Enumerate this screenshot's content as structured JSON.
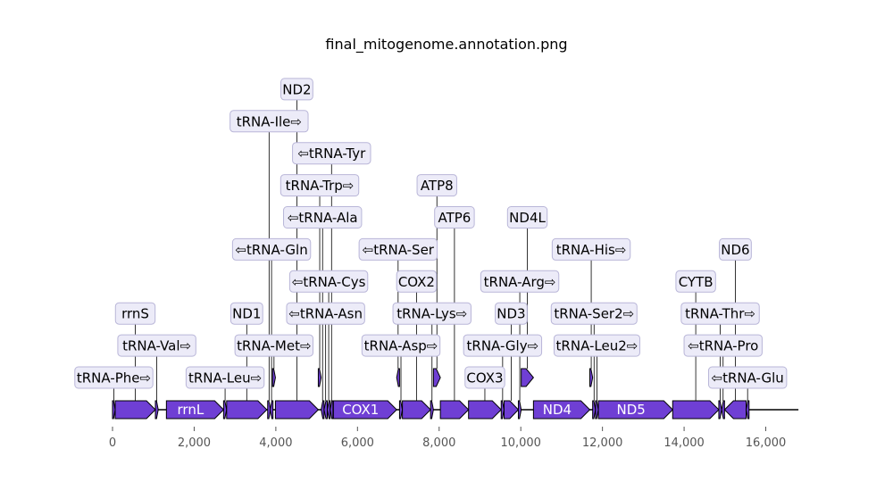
{
  "title": "final_mitogenome.annotation.png",
  "colors": {
    "feature_fill": "#6f3fd4",
    "feature_stroke": "#000000",
    "label_box_fill": "#ecebf8",
    "label_box_stroke": "#b9b6d8",
    "feature_text": "#ffffff",
    "backbone": "#000000",
    "axis_text": "#555555"
  },
  "axis": {
    "min": 0,
    "max": 16800,
    "ticks": [
      {
        "value": 0,
        "label": "0"
      },
      {
        "value": 2000,
        "label": "2,000"
      },
      {
        "value": 4000,
        "label": "4,000"
      },
      {
        "value": 6000,
        "label": "6,000"
      },
      {
        "value": 8000,
        "label": "8,000"
      },
      {
        "value": 10000,
        "label": "10,000"
      },
      {
        "value": 12000,
        "label": "12,000"
      },
      {
        "value": 14000,
        "label": "14,000"
      },
      {
        "value": 16000,
        "label": "16,000"
      }
    ]
  },
  "features": [
    {
      "name": "tRNA-Phe",
      "start": 0,
      "end": 65,
      "strand": 1,
      "row": 0
    },
    {
      "name": "rrnS",
      "start": 65,
      "end": 1050,
      "strand": 1,
      "row": 0
    },
    {
      "name": "tRNA-Val",
      "start": 1050,
      "end": 1120,
      "strand": 1,
      "row": 0
    },
    {
      "name": "rrnL",
      "start": 1320,
      "end": 2720,
      "strand": 1,
      "row": 0,
      "inside": true
    },
    {
      "name": "tRNA-Leu",
      "start": 2720,
      "end": 2795,
      "strand": 1,
      "row": 0
    },
    {
      "name": "ND1",
      "start": 2795,
      "end": 3780,
      "strand": 1,
      "row": 0
    },
    {
      "name": "tRNA-Ile",
      "start": 3800,
      "end": 3870,
      "strand": 1,
      "row": 0
    },
    {
      "name": "tRNA-Gln",
      "start": 3860,
      "end": 3930,
      "strand": -1,
      "row": 0
    },
    {
      "name": "tRNA-Met",
      "start": 3920,
      "end": 3990,
      "strand": 1,
      "row": 1
    },
    {
      "name": "ND2",
      "start": 3990,
      "end": 5040,
      "strand": 1,
      "row": 0
    },
    {
      "name": "tRNA-Trp",
      "start": 5040,
      "end": 5110,
      "strand": 1,
      "row": 1
    },
    {
      "name": "tRNA-Ala",
      "start": 5110,
      "end": 5180,
      "strand": -1,
      "row": 0
    },
    {
      "name": "tRNA-Asn",
      "start": 5180,
      "end": 5260,
      "strand": -1,
      "row": 0
    },
    {
      "name": "tRNA-Cys",
      "start": 5260,
      "end": 5330,
      "strand": -1,
      "row": 0
    },
    {
      "name": "tRNA-Tyr",
      "start": 5330,
      "end": 5400,
      "strand": -1,
      "row": 0
    },
    {
      "name": "COX1",
      "start": 5410,
      "end": 6960,
      "strand": 1,
      "row": 0,
      "inside": true
    },
    {
      "name": "tRNA-Ser",
      "start": 6960,
      "end": 7030,
      "strand": -1,
      "row": 1
    },
    {
      "name": "tRNA-Asp",
      "start": 7030,
      "end": 7100,
      "strand": 1,
      "row": 0
    },
    {
      "name": "COX2",
      "start": 7100,
      "end": 7790,
      "strand": 1,
      "row": 0
    },
    {
      "name": "tRNA-Lys",
      "start": 7790,
      "end": 7860,
      "strand": 1,
      "row": 0
    },
    {
      "name": "ATP8",
      "start": 7860,
      "end": 8030,
      "strand": 1,
      "row": 1
    },
    {
      "name": "ATP6",
      "start": 8030,
      "end": 8720,
      "strand": 1,
      "row": 0
    },
    {
      "name": "COX3",
      "start": 8720,
      "end": 9520,
      "strand": 1,
      "row": 0
    },
    {
      "name": "tRNA-Gly",
      "start": 9520,
      "end": 9590,
      "strand": 1,
      "row": 0
    },
    {
      "name": "ND3",
      "start": 9590,
      "end": 9940,
      "strand": 1,
      "row": 0
    },
    {
      "name": "tRNA-Arg",
      "start": 9940,
      "end": 10010,
      "strand": 1,
      "row": 0
    },
    {
      "name": "ND4L",
      "start": 10010,
      "end": 10310,
      "strand": 1,
      "row": 1
    },
    {
      "name": "ND4",
      "start": 10310,
      "end": 11690,
      "strand": 1,
      "row": 0,
      "inside": true
    },
    {
      "name": "tRNA-His",
      "start": 11690,
      "end": 11760,
      "strand": 1,
      "row": 1
    },
    {
      "name": "tRNA-Ser2",
      "start": 11760,
      "end": 11830,
      "strand": 1,
      "row": 0
    },
    {
      "name": "tRNA-Leu2",
      "start": 11830,
      "end": 11900,
      "strand": 1,
      "row": 0
    },
    {
      "name": "ND5",
      "start": 11900,
      "end": 13720,
      "strand": 1,
      "row": 0,
      "inside": true
    },
    {
      "name": "CYTB",
      "start": 13720,
      "end": 14850,
      "strand": 1,
      "row": 0
    },
    {
      "name": "tRNA-Thr",
      "start": 14850,
      "end": 14920,
      "strand": 1,
      "row": 0
    },
    {
      "name": "tRNA-Pro",
      "start": 14920,
      "end": 14990,
      "strand": -1,
      "row": 0
    },
    {
      "name": "ND6",
      "start": 14990,
      "end": 15520,
      "strand": -1,
      "row": 0
    },
    {
      "name": "tRNA-Glu",
      "start": 15520,
      "end": 15590,
      "strand": -1,
      "row": 0
    }
  ],
  "labels": [
    {
      "text": "tRNA-Phe⇨",
      "feature": "tRNA-Phe",
      "level": 0
    },
    {
      "text": "tRNA-Val⇨",
      "feature": "tRNA-Val",
      "level": 1
    },
    {
      "text": "rrnS",
      "feature": "rrnS",
      "level": 2
    },
    {
      "text": "tRNA-Leu⇨",
      "feature": "tRNA-Leu",
      "level": 0
    },
    {
      "text": "tRNA-Met⇨",
      "feature": "tRNA-Met",
      "level": 1
    },
    {
      "text": "ND1",
      "feature": "ND1",
      "level": 2
    },
    {
      "text": "⇦tRNA-Gln",
      "feature": "tRNA-Gln",
      "level": 4
    },
    {
      "text": "tRNA-Ile⇨",
      "feature": "tRNA-Ile",
      "level": 8
    },
    {
      "text": "ND2",
      "feature": "ND2",
      "level": 9
    },
    {
      "text": "⇦tRNA-Asn",
      "feature": "tRNA-Asn",
      "level": 2
    },
    {
      "text": "⇦tRNA-Cys",
      "feature": "tRNA-Cys",
      "level": 3
    },
    {
      "text": "⇦tRNA-Ala",
      "feature": "tRNA-Ala",
      "level": 5
    },
    {
      "text": "tRNA-Trp⇨",
      "feature": "tRNA-Trp",
      "level": 6
    },
    {
      "text": "⇦tRNA-Tyr",
      "feature": "tRNA-Tyr",
      "level": 7
    },
    {
      "text": "tRNA-Asp⇨",
      "feature": "tRNA-Asp",
      "level": 1
    },
    {
      "text": "tRNA-Lys⇨",
      "feature": "tRNA-Lys",
      "level": 2
    },
    {
      "text": "COX2",
      "feature": "COX2",
      "level": 3
    },
    {
      "text": "⇦tRNA-Ser",
      "feature": "tRNA-Ser",
      "level": 4
    },
    {
      "text": "ATP6",
      "feature": "ATP6",
      "level": 5
    },
    {
      "text": "ATP8",
      "feature": "ATP8",
      "level": 6
    },
    {
      "text": "COX3",
      "feature": "COX3",
      "level": 0
    },
    {
      "text": "tRNA-Gly⇨",
      "feature": "tRNA-Gly",
      "level": 1
    },
    {
      "text": "ND3",
      "feature": "ND3",
      "level": 2
    },
    {
      "text": "tRNA-Arg⇨",
      "feature": "tRNA-Arg",
      "level": 3
    },
    {
      "text": "ND4L",
      "feature": "ND4L",
      "level": 5
    },
    {
      "text": "tRNA-Leu2⇨",
      "feature": "tRNA-Leu2",
      "level": 1
    },
    {
      "text": "tRNA-Ser2⇨",
      "feature": "tRNA-Ser2",
      "level": 2
    },
    {
      "text": "tRNA-His⇨",
      "feature": "tRNA-His",
      "level": 4
    },
    {
      "text": "⇦tRNA-Glu",
      "feature": "tRNA-Glu",
      "level": 0
    },
    {
      "text": "⇦tRNA-Pro",
      "feature": "tRNA-Pro",
      "level": 1
    },
    {
      "text": "tRNA-Thr⇨",
      "feature": "tRNA-Thr",
      "level": 2
    },
    {
      "text": "CYTB",
      "feature": "CYTB",
      "level": 3
    },
    {
      "text": "ND6",
      "feature": "ND6",
      "level": 4
    }
  ]
}
